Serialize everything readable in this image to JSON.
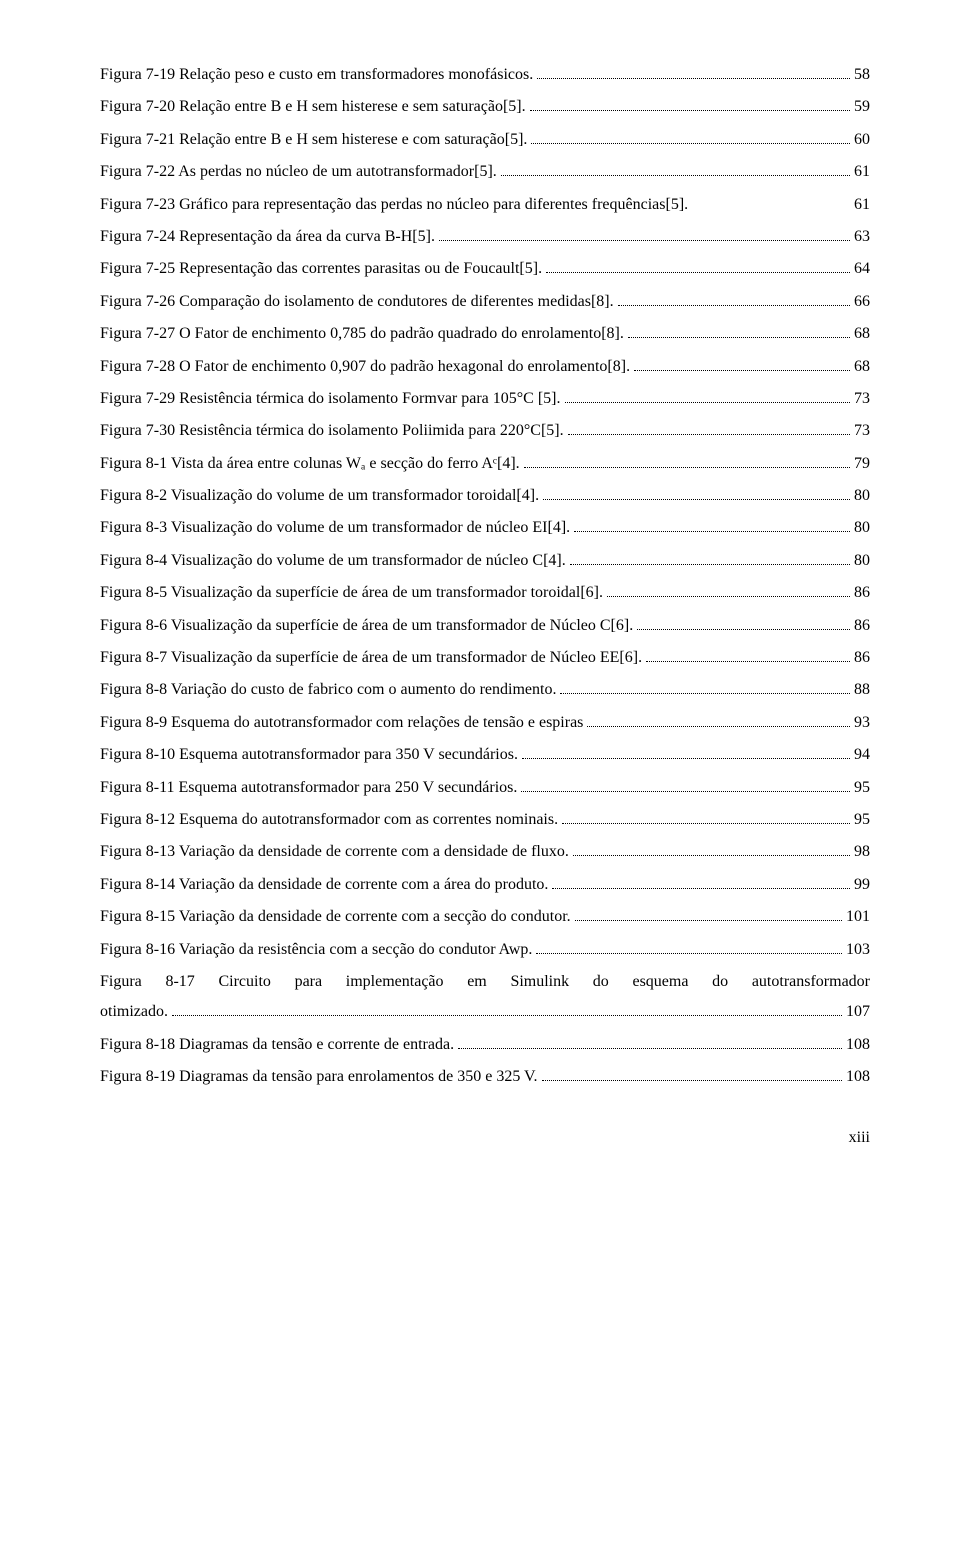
{
  "entries": [
    {
      "text": "Figura 7-19 Relação peso e custo em transformadores monofásicos.",
      "page": "58"
    },
    {
      "text": "Figura 7-20 Relação entre B e H sem histerese e sem saturação[5].",
      "page": "59"
    },
    {
      "text": "Figura 7-21 Relação entre B e H sem histerese e com saturação[5].",
      "page": "60"
    },
    {
      "text": "Figura 7-22 As perdas no núcleo de um autotransformador[5].",
      "page": "61"
    },
    {
      "text": "Figura 7-23 Gráfico para representação das perdas no núcleo para diferentes frequências[5].",
      "page": "61",
      "nodots": true
    },
    {
      "text": "Figura 7-24 Representação da área da curva B-H[5].",
      "page": "63"
    },
    {
      "text": "Figura 7-25 Representação das correntes parasitas ou de Foucault[5].",
      "page": "64"
    },
    {
      "text": "Figura 7-26 Comparação do isolamento de condutores de diferentes medidas[8].",
      "page": "66"
    },
    {
      "text": "Figura 7-27 O Fator de enchimento 0,785 do padrão quadrado do enrolamento[8].",
      "page": "68"
    },
    {
      "text": "Figura 7-28 O Fator de enchimento 0,907 do padrão hexagonal do enrolamento[8].",
      "page": "68"
    },
    {
      "text": "Figura 7-29 Resistência térmica do isolamento Formvar para 105°C [5].",
      "page": "73"
    },
    {
      "text": "Figura 7-30 Resistência térmica do isolamento Poliimida para 220°C[5].",
      "page": "73"
    },
    {
      "text": "Figura 8-1 Vista da área entre colunas Wₐ e secção do ferro Aᶜ[4].",
      "page": "79"
    },
    {
      "text": "Figura 8-2 Visualização do volume de um transformador toroidal[4].",
      "page": "80"
    },
    {
      "text": "Figura 8-3 Visualização do volume de um transformador de núcleo EI[4].",
      "page": "80"
    },
    {
      "text": "Figura 8-4 Visualização do volume de um transformador de núcleo C[4].",
      "page": "80"
    },
    {
      "text": "Figura 8-5 Visualização da superfície de área de um transformador toroidal[6].",
      "page": "86"
    },
    {
      "text": "Figura 8-6 Visualização da superfície de área de um transformador de Núcleo C[6].",
      "page": "86"
    },
    {
      "text": "Figura 8-7 Visualização da superfície de área de um transformador de Núcleo EE[6].",
      "page": "86"
    },
    {
      "text": "Figura 8-8 Variação do custo de fabrico com o aumento do rendimento.",
      "page": "88"
    },
    {
      "text": "Figura 8-9 Esquema do autotransformador com relações de tensão e espiras",
      "page": "93"
    },
    {
      "text": "Figura 8-10 Esquema autotransformador para 350 V secundários.",
      "page": "94"
    },
    {
      "text": "Figura 8-11 Esquema autotransformador para 250 V secundários.",
      "page": "95"
    },
    {
      "text": "Figura 8-12 Esquema do autotransformador com as correntes nominais.",
      "page": "95"
    },
    {
      "text": "Figura 8-13 Variação da densidade de corrente com a densidade de fluxo.",
      "page": "98"
    },
    {
      "text": "Figura 8-14 Variação da densidade de corrente com a área do produto.",
      "page": "99"
    },
    {
      "text": "Figura 8-15 Variação da densidade de corrente com a secção do condutor.",
      "page": "101"
    },
    {
      "text": "Figura 8-16 Variação da resistência com a secção do condutor Awp.",
      "page": "103"
    },
    {
      "text_line1": "Figura 8-17 Circuito para implementação em Simulink do esquema do autotransformador",
      "text_line2": "otimizado.",
      "page": "107",
      "multiline": true
    },
    {
      "text": "Figura 8-18 Diagramas da tensão e corrente de entrada.",
      "page": "108"
    },
    {
      "text": "Figura 8-19 Diagramas da tensão para enrolamentos de 350 e 325 V.",
      "page": "108"
    }
  ],
  "page_footer": "xiii"
}
